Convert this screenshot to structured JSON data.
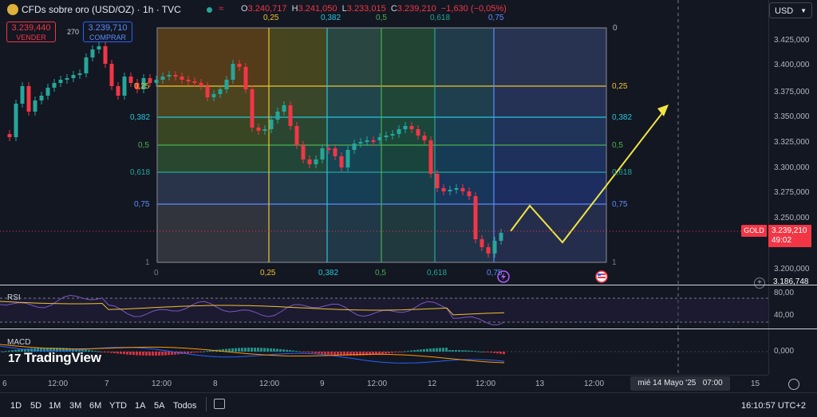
{
  "header": {
    "title": "CFDs sobre oro (USD/OZ) · 1h · TVC",
    "ohlc": {
      "o_label": "O",
      "o": "3.240,717",
      "h_label": "H",
      "h": "3.241,050",
      "l_label": "L",
      "l": "3.233,015",
      "c_label": "C",
      "c": "3.239,210",
      "change": "−1,630 (−0,05%)"
    }
  },
  "trade": {
    "sell_price": "3.239,440",
    "sell_label": "VENDER",
    "buy_price": "3.239,710",
    "buy_label": "COMPRAR",
    "spread": "270"
  },
  "currency": "USD",
  "price_axis": {
    "ticks": [
      "3.425,000",
      "3.400,000",
      "3.375,000",
      "3.350,000",
      "3.325,000",
      "3.300,000",
      "3.275,000",
      "3.250,000",
      "3.200,000"
    ],
    "symbol_tag": "GOLD",
    "last_price": "3.239,210",
    "countdown": "49:02",
    "low_price": "3.186,748"
  },
  "fib": {
    "top_label": "0",
    "right_labels": [
      "0",
      "0,25",
      "0,382",
      "0,5",
      "0,618",
      "0,75",
      "1"
    ],
    "left_labels": [
      "0,25",
      "0,382",
      "0,5",
      "0,618",
      "0,75",
      "1"
    ],
    "top_labels": [
      "0,25",
      "0,382",
      "0,5",
      "0,618",
      "0,75"
    ],
    "bottom_labels": [
      "0",
      "0,25",
      "0,382",
      "0,5",
      "0,618",
      "0,75"
    ],
    "levels": [
      0,
      0.25,
      0.382,
      0.5,
      0.618,
      0.75,
      1
    ],
    "level_colors": [
      "#787b86",
      "#f0c330",
      "#26c6da",
      "#4caf50",
      "#26a69a",
      "#5b8cff",
      "#787b86"
    ]
  },
  "rsi": {
    "label": "RSI",
    "ticks": [
      "80,00",
      "40,00"
    ]
  },
  "macd": {
    "label": "MACD",
    "ticks": [
      "0,000"
    ]
  },
  "brand": "TradingView",
  "time_axis": {
    "ticks": [
      "6",
      "12:00",
      "7",
      "12:00",
      "8",
      "12:00",
      "9",
      "12:00",
      "12",
      "12:00",
      "13",
      "12:00",
      "15"
    ],
    "crosshair_date": "mié 14 Mayo '25",
    "crosshair_time": "07:00"
  },
  "bottom_bar": {
    "ranges": [
      "1D",
      "5D",
      "1M",
      "3M",
      "6M",
      "YTD",
      "1A",
      "5A",
      "Todos"
    ],
    "clock": "16:10:57 UTC+2"
  },
  "colors": {
    "up": "#26a69a",
    "down": "#f23645",
    "projection": "#f0e442",
    "bg": "#131722"
  }
}
